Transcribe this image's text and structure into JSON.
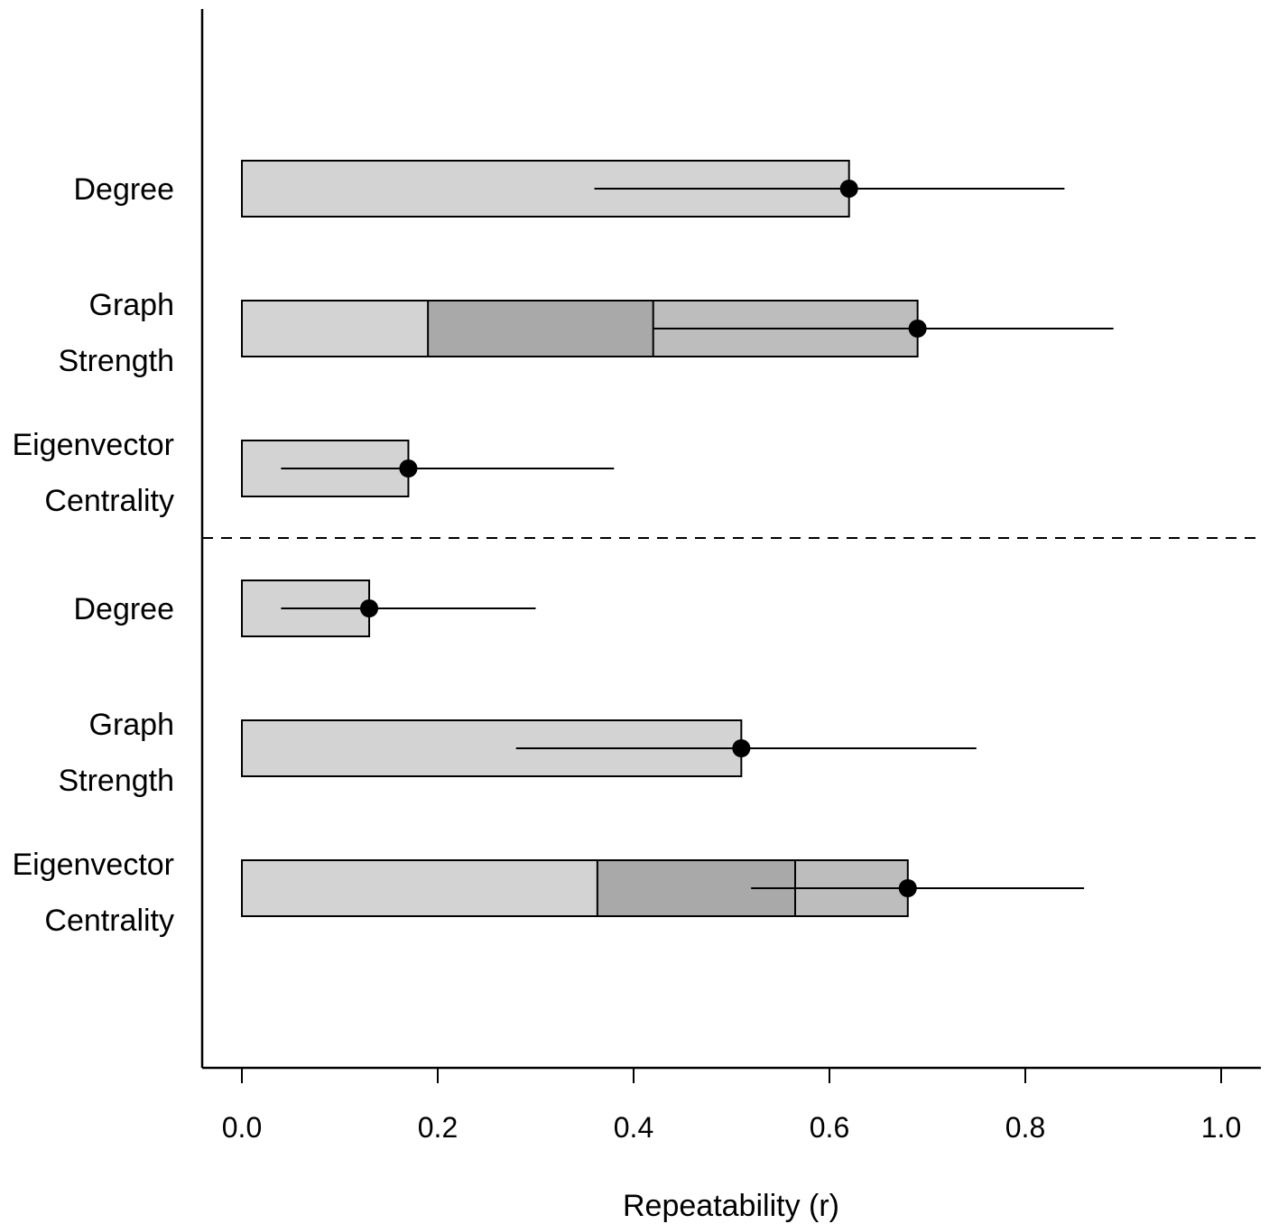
{
  "chart_data": {
    "type": "bar",
    "orientation": "horizontal",
    "xlabel": "Repeatability (r)",
    "xlim": [
      -0.04,
      1.04
    ],
    "x_ticks": [
      "0.0",
      "0.2",
      "0.4",
      "0.6",
      "0.8",
      "1.0"
    ],
    "x_tick_values": [
      0.0,
      0.2,
      0.4,
      0.6,
      0.8,
      1.0
    ],
    "grid": false,
    "divider": "dashed line between the two groups of three rows",
    "colors": {
      "bar": "#d3d3d3",
      "bar_mid": "#bdbdbd",
      "bar_dark": "#a9a9a9",
      "outline": "#000000",
      "point": "#000000"
    },
    "rows": [
      {
        "label_lines": [
          "Degree"
        ],
        "estimate": 0.62,
        "ci": [
          0.36,
          0.84
        ],
        "segments": []
      },
      {
        "label_lines": [
          "Graph",
          "Strength"
        ],
        "estimate": 0.69,
        "ci": [
          0.42,
          0.89
        ],
        "segments": [
          0.19,
          0.42
        ]
      },
      {
        "label_lines": [
          "Eigenvector",
          "Centrality"
        ],
        "estimate": 0.17,
        "ci": [
          0.04,
          0.38
        ],
        "segments": []
      },
      {
        "label_lines": [
          "Degree"
        ],
        "estimate": 0.13,
        "ci": [
          0.04,
          0.3
        ],
        "segments": []
      },
      {
        "label_lines": [
          "Graph",
          "Strength"
        ],
        "estimate": 0.51,
        "ci": [
          0.28,
          0.75
        ],
        "segments": []
      },
      {
        "label_lines": [
          "Eigenvector",
          "Centrality"
        ],
        "estimate": 0.68,
        "ci": [
          0.52,
          0.86
        ],
        "segments": [
          0.363,
          0.565
        ]
      }
    ]
  }
}
